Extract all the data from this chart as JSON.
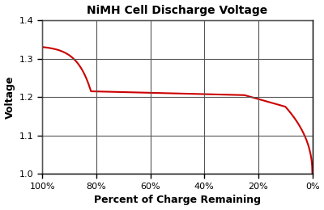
{
  "title": "NiMH Cell Discharge Voltage",
  "xlabel": "Percent of Charge Remaining",
  "ylabel": "Voltage",
  "line_color": "#cc0000",
  "line_width": 1.5,
  "background_color": "#ffffff",
  "ylim": [
    1.0,
    1.4
  ],
  "xticks": [
    1.0,
    0.8,
    0.6,
    0.4,
    0.2,
    0.0
  ],
  "xtick_labels": [
    "100%",
    "80%",
    "60%",
    "40%",
    "20%",
    "0%"
  ],
  "yticks": [
    1.0,
    1.1,
    1.2,
    1.3,
    1.4
  ],
  "grid_color": "#555555",
  "title_fontsize": 10,
  "label_fontsize": 9,
  "tick_fontsize": 8
}
